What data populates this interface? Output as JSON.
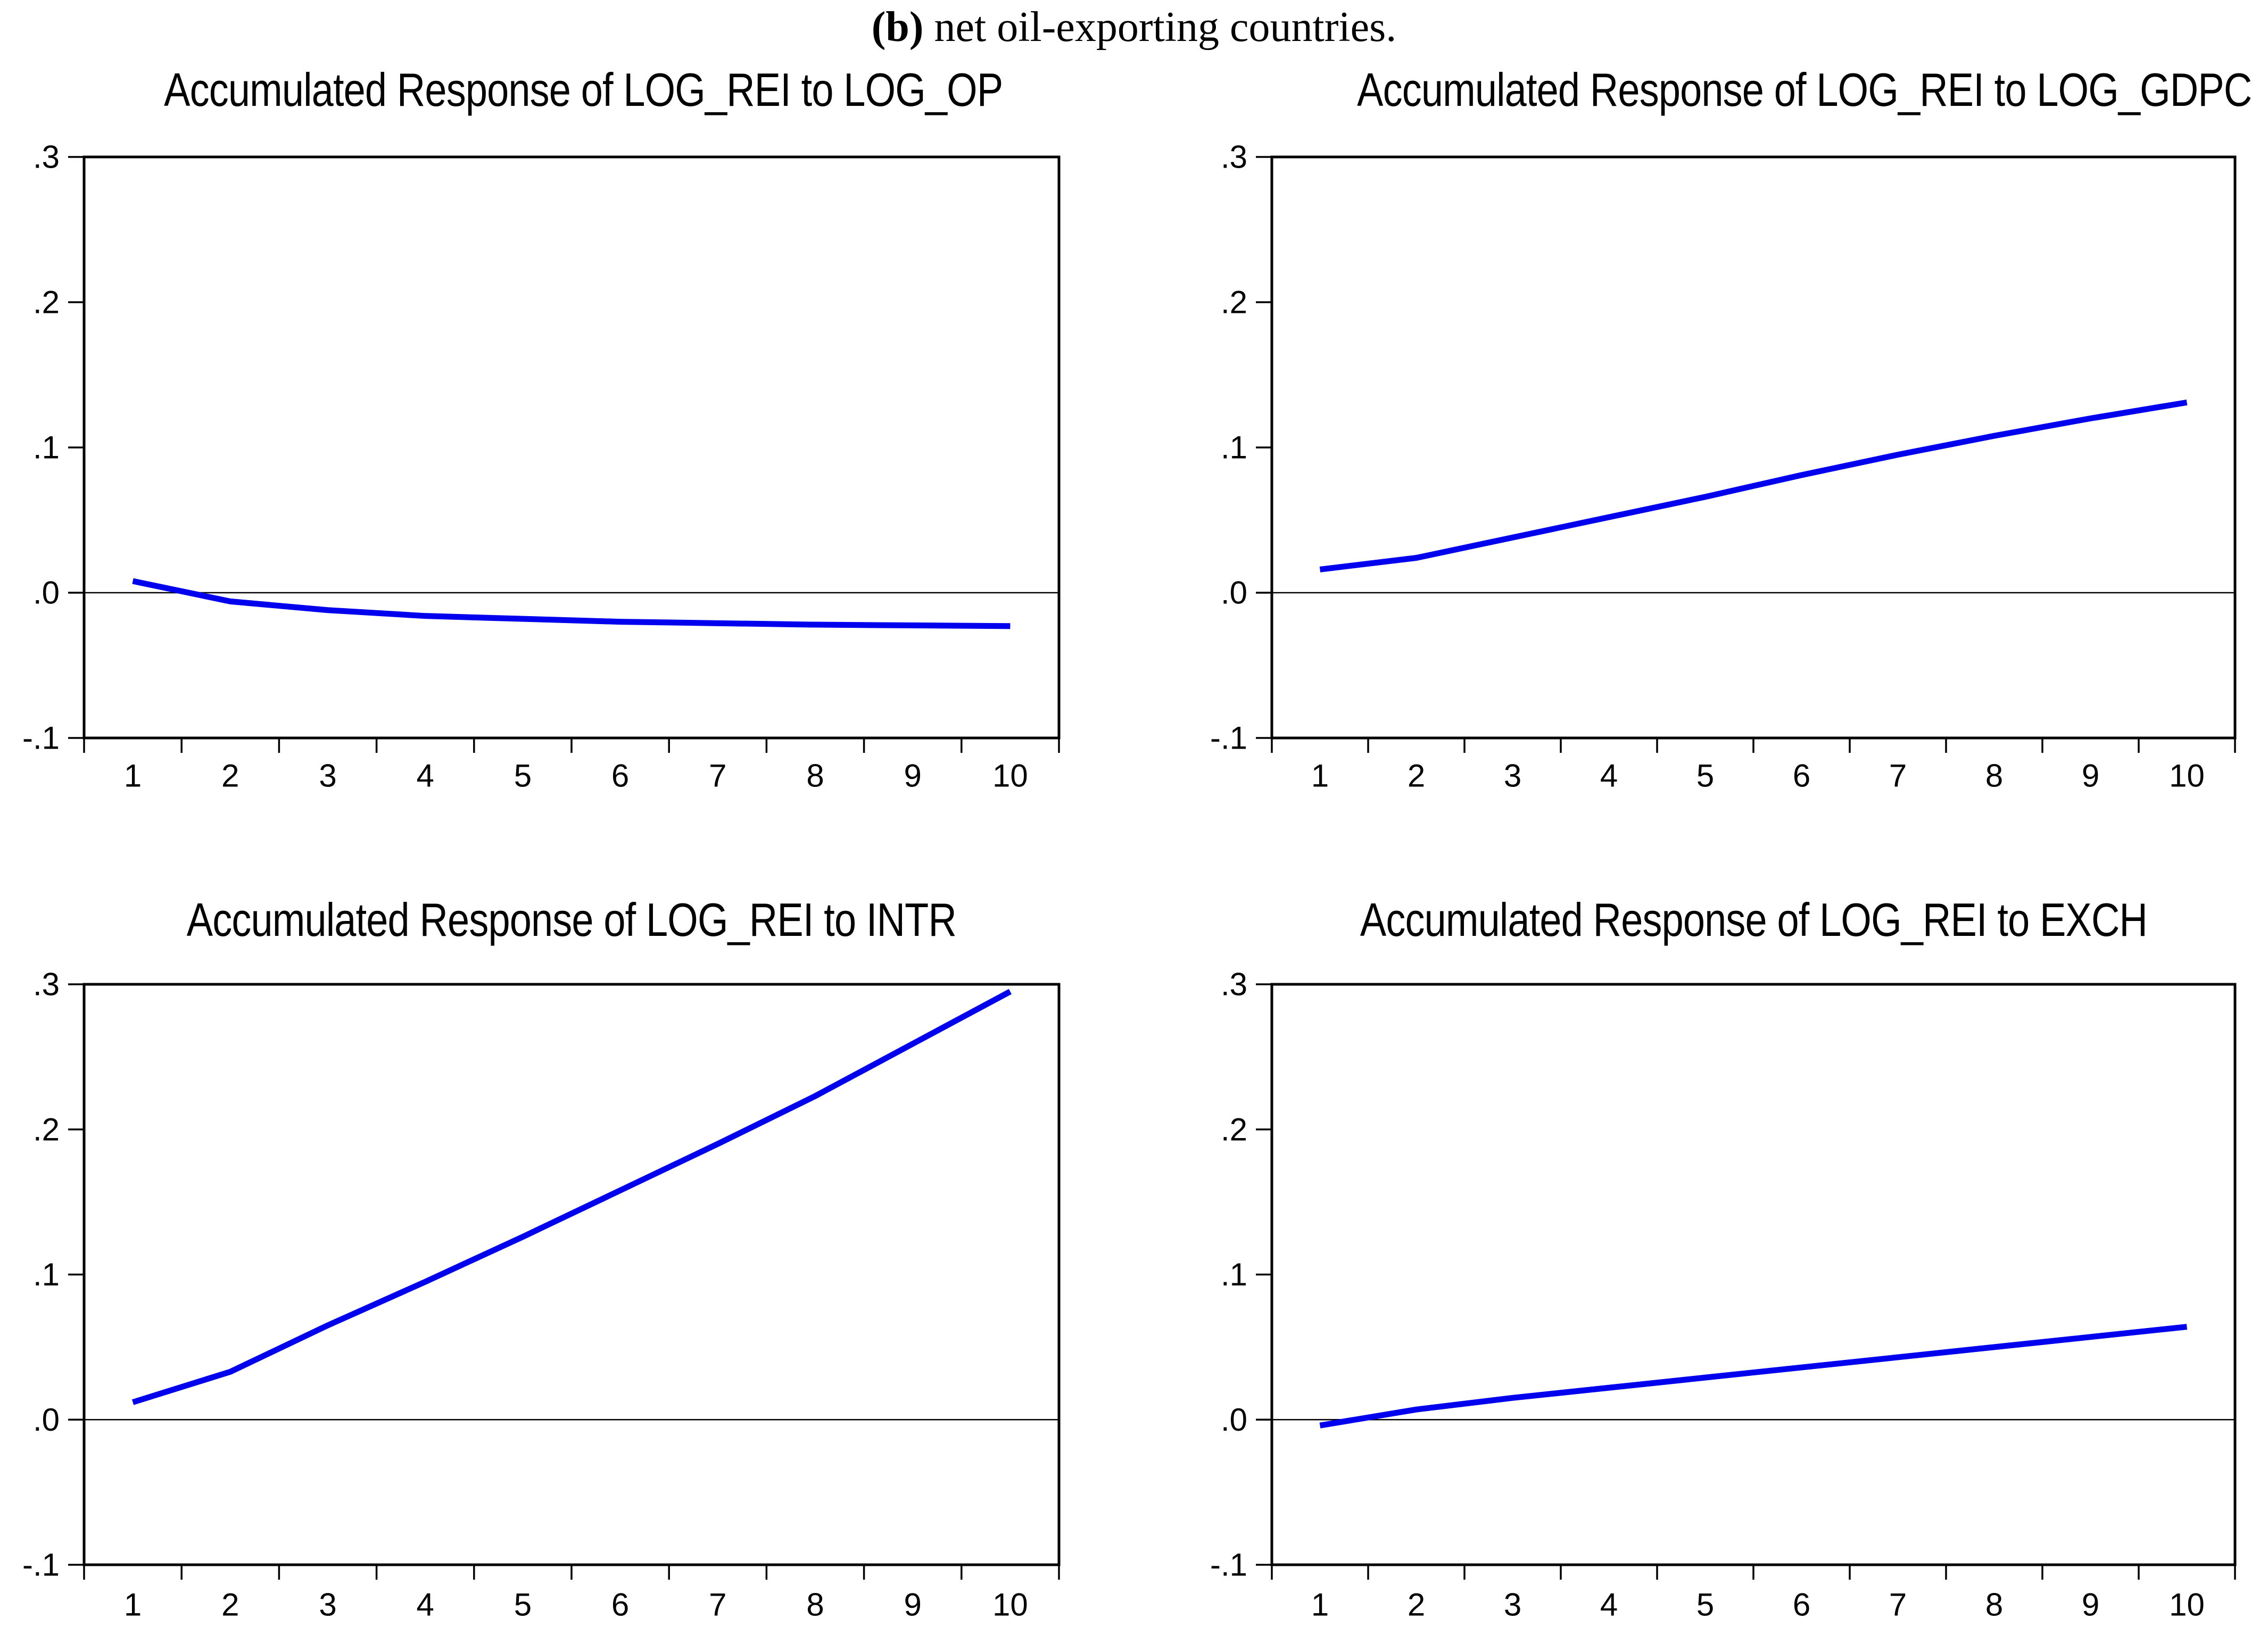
{
  "figure": {
    "caption_bold": "(b)",
    "caption_rest": " net oil-exporting countries."
  },
  "style": {
    "line_color": "#0000EE",
    "axis_color": "#000000",
    "zero_line_color": "#000000",
    "background": "#FFFFFF"
  },
  "axes": {
    "ylim": [
      -0.1,
      0.3
    ],
    "y_ticks": [
      {
        "label": ".3",
        "value": 0.3
      },
      {
        "label": ".2",
        "value": 0.2
      },
      {
        "label": ".1",
        "value": 0.1
      },
      {
        "label": ".0",
        "value": 0.0
      },
      {
        "label": "-.1",
        "value": -0.1
      }
    ],
    "x_labels": [
      "1",
      "2",
      "3",
      "4",
      "5",
      "6",
      "7",
      "8",
      "9",
      "10"
    ],
    "grid": false,
    "legend": "none"
  },
  "chart_data": [
    {
      "type": "line",
      "title": "Accumulated Response of LOG_REI to LOG_OP",
      "xlabel": "",
      "ylabel": "",
      "ylim": [
        -0.1,
        0.3
      ],
      "x": [
        1,
        2,
        3,
        4,
        5,
        6,
        7,
        8,
        9,
        10
      ],
      "values": [
        0.008,
        -0.006,
        -0.012,
        -0.016,
        -0.018,
        -0.02,
        -0.021,
        -0.022,
        -0.0225,
        -0.023
      ]
    },
    {
      "type": "line",
      "title": "Accumulated Response of LOG_REI to LOG_GDPC",
      "xlabel": "",
      "ylabel": "",
      "ylim": [
        -0.1,
        0.3
      ],
      "x": [
        1,
        2,
        3,
        4,
        5,
        6,
        7,
        8,
        9,
        10
      ],
      "values": [
        0.016,
        0.024,
        0.038,
        0.052,
        0.066,
        0.081,
        0.095,
        0.108,
        0.12,
        0.131
      ]
    },
    {
      "type": "line",
      "title": "Accumulated Response of LOG_REI to INTR",
      "xlabel": "",
      "ylabel": "",
      "ylim": [
        -0.1,
        0.3
      ],
      "x": [
        1,
        2,
        3,
        4,
        5,
        6,
        7,
        8,
        9,
        10
      ],
      "values": [
        0.012,
        0.033,
        0.065,
        0.095,
        0.126,
        0.158,
        0.19,
        0.223,
        0.259,
        0.295
      ]
    },
    {
      "type": "line",
      "title": "Accumulated Response of LOG_REI to EXCH",
      "xlabel": "",
      "ylabel": "",
      "ylim": [
        -0.1,
        0.3
      ],
      "x": [
        1,
        2,
        3,
        4,
        5,
        6,
        7,
        8,
        9,
        10
      ],
      "values": [
        -0.004,
        0.007,
        0.015,
        0.022,
        0.029,
        0.036,
        0.043,
        0.05,
        0.057,
        0.064
      ]
    }
  ]
}
